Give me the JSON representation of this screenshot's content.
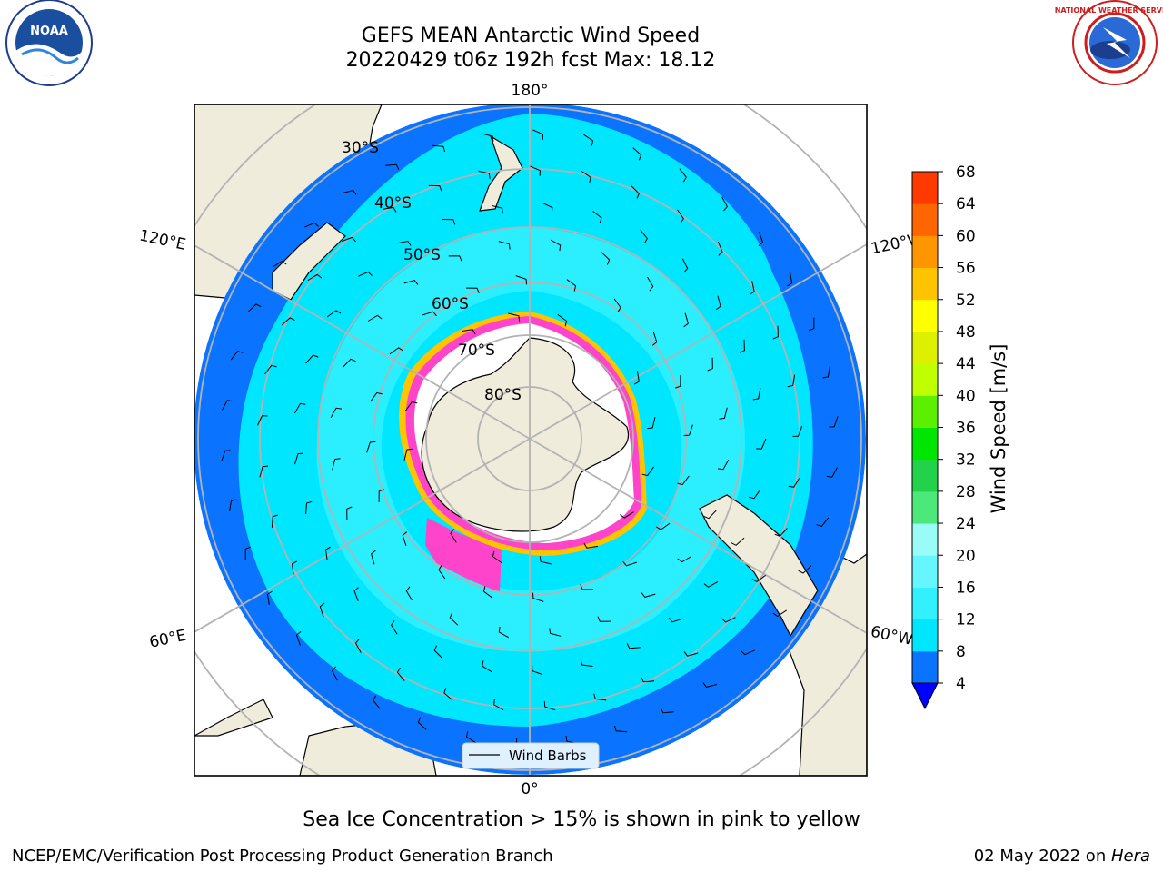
{
  "title_line1": "GEFS MEAN Antarctic Wind Speed",
  "title_line2": "20220429 t06z 192h fcst   Max: 18.12",
  "caption": "Sea Ice Concentration > 15% is shown in pink to yellow",
  "footer_left": "NCEP/EMC/Verification Post Processing Product Generation Branch",
  "footer_date": "02 May 2022 on ",
  "footer_machine": "Hera",
  "logos": {
    "left": "noaa-logo",
    "right": "nws-logo",
    "left_text": "NOAA",
    "nws_ring": "NATIONAL WEATHER SERVICE"
  },
  "map": {
    "projection": "south-polar-stereographic",
    "longitude_labels": [
      "180°",
      "0°",
      "120°E",
      "60°E",
      "120°W",
      "60°W"
    ],
    "latitude_labels": [
      "30°S",
      "40°S",
      "50°S",
      "60°S",
      "70°S",
      "80°S"
    ],
    "legend": {
      "entry": "Wind Barbs"
    }
  },
  "colorbar": {
    "label": "Wind Speed [m/s]",
    "ticks": [
      "4",
      "8",
      "12",
      "16",
      "20",
      "24",
      "28",
      "32",
      "36",
      "40",
      "44",
      "48",
      "52",
      "56",
      "60",
      "64",
      "68"
    ],
    "colors": [
      "#0a73ff",
      "#00e6ff",
      "#33f0ff",
      "#66f6ff",
      "#99fcf6",
      "#4de87a",
      "#22d24a",
      "#00e600",
      "#5cf000",
      "#bfff00",
      "#dcf000",
      "#ffff00",
      "#ffc400",
      "#ff9600",
      "#ff6600",
      "#ff3a00",
      "#ff0000"
    ],
    "extend_color": "#0000ff"
  },
  "colors": {
    "land": "#efecdc",
    "ocean_low": "#0a73ff",
    "ocean_mid": "#00e6ff",
    "ocean_high": "#33f0ff",
    "sea_ice": "#ff44cc",
    "ice_edge": "#ffc400"
  }
}
